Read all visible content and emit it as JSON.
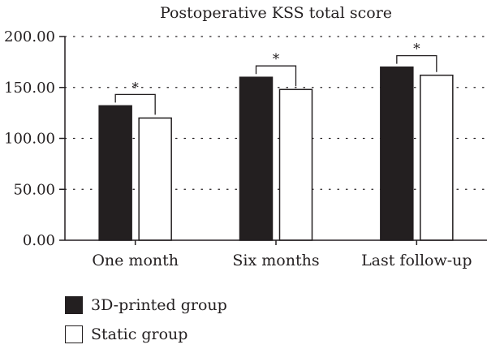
{
  "chart_data": {
    "type": "bar",
    "title": "Postoperative KSS total score",
    "xlabel": "",
    "ylabel": "",
    "ylim": [
      0,
      200
    ],
    "yticks": [
      "0.00",
      "50.00",
      "100.00",
      "150.00",
      "200.00"
    ],
    "categories": [
      "One month",
      "Six months",
      "Last follow-up"
    ],
    "series": [
      {
        "name": "3D-printed group",
        "values": [
          132,
          160,
          170
        ],
        "color": "#231f20"
      },
      {
        "name": "Static group",
        "values": [
          120,
          148,
          162
        ],
        "color": "#ffffff"
      }
    ],
    "significance": [
      "*",
      "*",
      "*"
    ],
    "grid": "dotted horizontal",
    "legend": "bottom-left"
  }
}
